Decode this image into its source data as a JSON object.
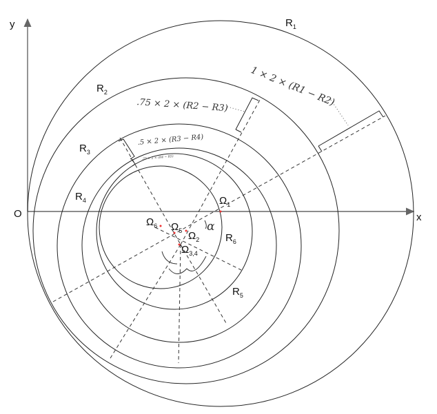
{
  "axes": {
    "origin": "O",
    "x": "x",
    "y": "y"
  },
  "radii": [
    {
      "label": "R",
      "sub": "1"
    },
    {
      "label": "R",
      "sub": "2"
    },
    {
      "label": "R",
      "sub": "3"
    },
    {
      "label": "R",
      "sub": "4"
    },
    {
      "label": "R",
      "sub": "5"
    },
    {
      "label": "R",
      "sub": "6"
    }
  ],
  "centers": [
    {
      "label": "Ω",
      "sub": "1"
    },
    {
      "label": "Ω",
      "sub": "2"
    },
    {
      "label": "Ω",
      "sub": "3,4"
    },
    {
      "label": "Ω",
      "sub": "5"
    },
    {
      "label": "Ω",
      "sub": "6"
    }
  ],
  "angle_label": "α",
  "annotations": [
    "1 × 2 × (R1 − R2)",
    ".75 × 2 × (R2 − R3)",
    ".5 × 2 × (R3 − R4)",
    ".25 × 2 × (R4 − R5)"
  ],
  "colors": {
    "line": "#222222",
    "center_marker": "#ee3333",
    "subscript_accent": "#3399ff"
  }
}
